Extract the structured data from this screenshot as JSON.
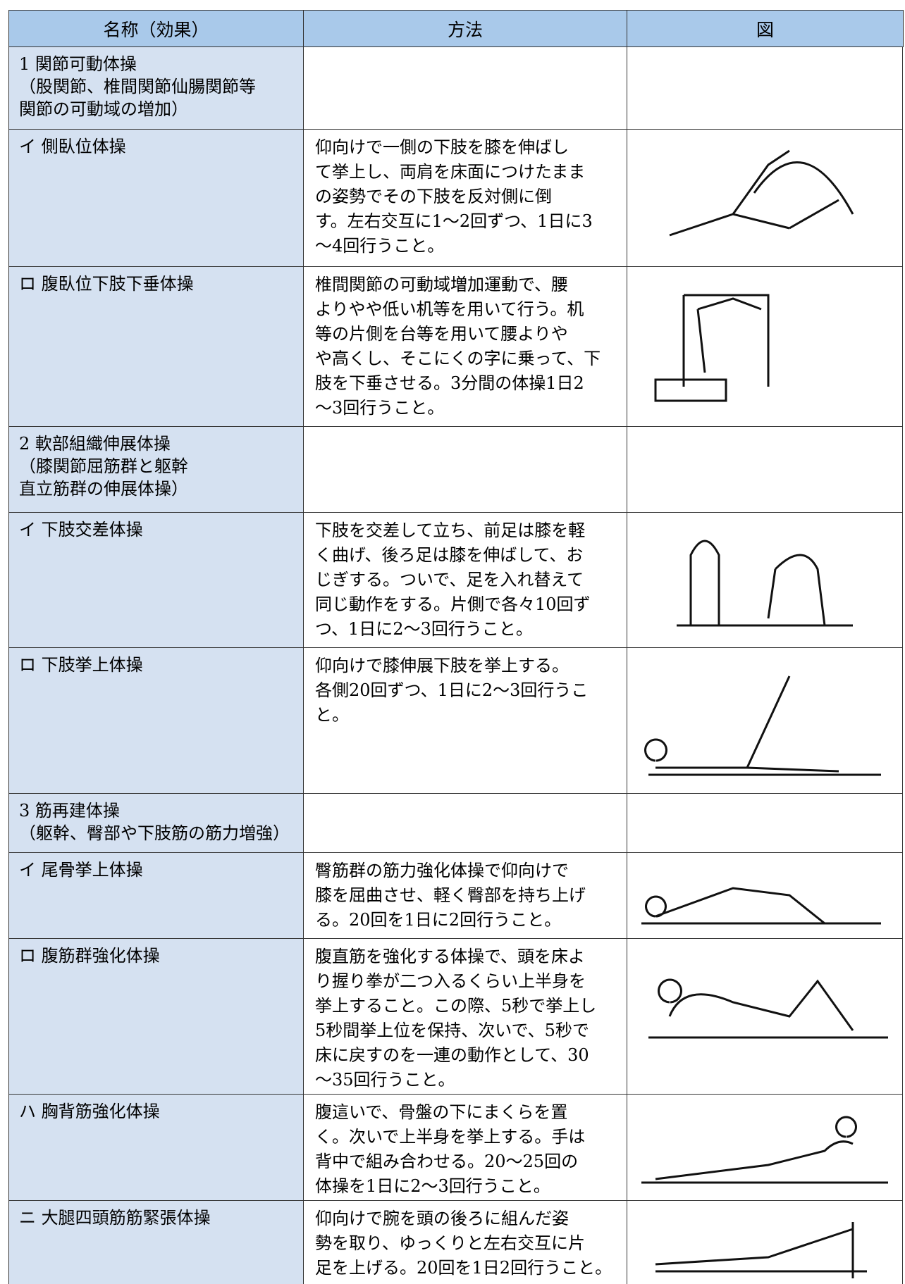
{
  "header": {
    "columns": [
      "名称（効果）",
      "方法",
      "図"
    ]
  },
  "table": {
    "rows": [
      {
        "name": [
          "1 関節可動体操",
          "（股関節、椎間関節仙腸関節等",
          "関節の可動域の増加）"
        ]
      },
      {
        "name": [
          "イ 側臥位体操"
        ],
        "method": [
          "仰向けで一側の下肢を膝を伸ばし",
          "て挙上し、両肩を床面につけたまま",
          "の姿勢でその下肢を反対側に倒",
          "す。左右交互に1～2回ずつ、1日に3",
          "～4回行うこと。"
        ]
      },
      {
        "name": [
          "ロ 腹臥位下肢下垂体操"
        ],
        "method": [
          "椎間関節の可動域増加運動で、腰",
          "よりやや低い机等を用いて行う。机",
          "等の片側を台等を用いて腰よりや",
          "や高くし、そこにくの字に乗って、下",
          "肢を下垂させる。3分間の体操1日2",
          "～3回行うこと。"
        ]
      },
      {
        "name": [
          "2 軟部組織伸展体操",
          "（膝関節屈筋群と躯幹",
          "直立筋群の伸展体操）"
        ]
      },
      {
        "name": [
          "イ 下肢交差体操"
        ],
        "method": [
          "下肢を交差して立ち、前足は膝を軽",
          "く曲げ、後ろ足は膝を伸ばして、お",
          "じぎする。ついで、足を入れ替えて",
          "同じ動作をする。片側で各々10回ず",
          "つ、1日に2～3回行うこと。"
        ]
      },
      {
        "name": [
          "ロ 下肢挙上体操"
        ],
        "method": [
          "仰向けで膝伸展下肢を挙上する。",
          "各側20回ずつ、1日に2～3回行うこ",
          "と。"
        ]
      },
      {
        "name": [
          "3 筋再建体操",
          "（躯幹、臀部や下肢筋の筋力増強）"
        ]
      },
      {
        "name": [
          "イ 尾骨挙上体操"
        ],
        "method": [
          "臀筋群の筋力強化体操で仰向けで",
          "膝を屈曲させ、軽く臀部を持ち上げ",
          "る。20回を1日に2回行うこと。"
        ]
      },
      {
        "name": [
          "ロ 腹筋群強化体操"
        ],
        "method": [
          "腹直筋を強化する体操で、頭を床よ",
          "り握り拳が二つ入るくらい上半身を",
          "挙上すること。この際、5秒で挙上し",
          "5秒間挙上位を保持、次いで、5秒で",
          "床に戻すのを一連の動作として、30",
          "～35回行うこと。"
        ]
      },
      {
        "name": [
          "ハ 胸背筋強化体操"
        ],
        "method": [
          "腹這いで、骨盤の下にまくらを置",
          "く。次いで上半身を挙上する。手は",
          "背中で組み合わせる。20～25回の",
          "体操を1日に2～3回行うこと。"
        ]
      },
      {
        "name": [
          "ニ 大腿四頭筋筋緊張体操"
        ],
        "method": [
          "仰向けで腕を頭の後ろに組んだ姿",
          "勢を取り、ゆっくりと左右交互に片",
          "足を上げる。20回を1日2回行うこと。"
        ]
      }
    ]
  }
}
